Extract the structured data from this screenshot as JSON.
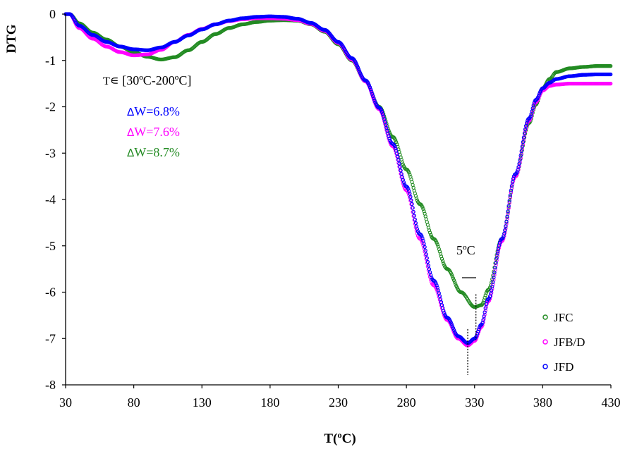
{
  "chart_data": {
    "type": "scatter",
    "xlabel": "T(ºC)",
    "ylabel": "DTG",
    "xlim": [
      30,
      430
    ],
    "ylim": [
      -8,
      0
    ],
    "x_ticks": [
      30,
      80,
      130,
      180,
      230,
      280,
      330,
      380,
      430
    ],
    "y_ticks": [
      0,
      -1,
      -2,
      -3,
      -4,
      -5,
      -6,
      -7,
      -8
    ],
    "grid": false,
    "legend_position": "bottom-right",
    "series": [
      {
        "name": "JFC",
        "color": "#228B22",
        "points": [
          [
            30,
            0
          ],
          [
            33,
            0
          ],
          [
            40,
            -0.2
          ],
          [
            50,
            -0.4
          ],
          [
            60,
            -0.55
          ],
          [
            70,
            -0.7
          ],
          [
            80,
            -0.82
          ],
          [
            90,
            -0.92
          ],
          [
            100,
            -0.98
          ],
          [
            110,
            -0.93
          ],
          [
            120,
            -0.78
          ],
          [
            130,
            -0.6
          ],
          [
            140,
            -0.43
          ],
          [
            150,
            -0.3
          ],
          [
            160,
            -0.22
          ],
          [
            170,
            -0.17
          ],
          [
            180,
            -0.14
          ],
          [
            190,
            -0.13
          ],
          [
            200,
            -0.14
          ],
          [
            210,
            -0.22
          ],
          [
            220,
            -0.38
          ],
          [
            230,
            -0.65
          ],
          [
            240,
            -1.0
          ],
          [
            250,
            -1.45
          ],
          [
            260,
            -2.0
          ],
          [
            270,
            -2.65
          ],
          [
            280,
            -3.35
          ],
          [
            290,
            -4.1
          ],
          [
            300,
            -4.85
          ],
          [
            310,
            -5.5
          ],
          [
            320,
            -6.0
          ],
          [
            330,
            -6.32
          ],
          [
            335,
            -6.28
          ],
          [
            340,
            -5.95
          ],
          [
            350,
            -4.85
          ],
          [
            360,
            -3.5
          ],
          [
            370,
            -2.35
          ],
          [
            375,
            -1.95
          ],
          [
            380,
            -1.6
          ],
          [
            385,
            -1.4
          ],
          [
            390,
            -1.25
          ],
          [
            400,
            -1.17
          ],
          [
            410,
            -1.14
          ],
          [
            420,
            -1.12
          ],
          [
            430,
            -1.12
          ]
        ]
      },
      {
        "name": "JFB/D",
        "color": "#FF00FF",
        "points": [
          [
            30,
            0
          ],
          [
            33,
            0
          ],
          [
            40,
            -0.3
          ],
          [
            50,
            -0.53
          ],
          [
            60,
            -0.7
          ],
          [
            70,
            -0.82
          ],
          [
            80,
            -0.89
          ],
          [
            90,
            -0.87
          ],
          [
            100,
            -0.77
          ],
          [
            110,
            -0.6
          ],
          [
            120,
            -0.45
          ],
          [
            130,
            -0.32
          ],
          [
            140,
            -0.22
          ],
          [
            150,
            -0.15
          ],
          [
            160,
            -0.11
          ],
          [
            170,
            -0.09
          ],
          [
            180,
            -0.09
          ],
          [
            190,
            -0.1
          ],
          [
            200,
            -0.13
          ],
          [
            210,
            -0.21
          ],
          [
            220,
            -0.36
          ],
          [
            230,
            -0.62
          ],
          [
            240,
            -0.98
          ],
          [
            250,
            -1.45
          ],
          [
            260,
            -2.05
          ],
          [
            270,
            -2.85
          ],
          [
            280,
            -3.8
          ],
          [
            290,
            -4.85
          ],
          [
            300,
            -5.85
          ],
          [
            310,
            -6.6
          ],
          [
            318,
            -7.0
          ],
          [
            325,
            -7.15
          ],
          [
            330,
            -7.05
          ],
          [
            335,
            -6.75
          ],
          [
            340,
            -6.2
          ],
          [
            350,
            -4.9
          ],
          [
            360,
            -3.5
          ],
          [
            370,
            -2.3
          ],
          [
            375,
            -1.9
          ],
          [
            380,
            -1.65
          ],
          [
            385,
            -1.55
          ],
          [
            390,
            -1.52
          ],
          [
            400,
            -1.5
          ],
          [
            410,
            -1.5
          ],
          [
            420,
            -1.5
          ],
          [
            430,
            -1.5
          ]
        ]
      },
      {
        "name": "JFD",
        "color": "#0000FF",
        "points": [
          [
            30,
            0
          ],
          [
            33,
            0
          ],
          [
            40,
            -0.25
          ],
          [
            50,
            -0.45
          ],
          [
            60,
            -0.6
          ],
          [
            70,
            -0.7
          ],
          [
            80,
            -0.76
          ],
          [
            90,
            -0.78
          ],
          [
            100,
            -0.72
          ],
          [
            110,
            -0.6
          ],
          [
            120,
            -0.46
          ],
          [
            130,
            -0.33
          ],
          [
            140,
            -0.22
          ],
          [
            150,
            -0.14
          ],
          [
            160,
            -0.09
          ],
          [
            170,
            -0.06
          ],
          [
            180,
            -0.05
          ],
          [
            190,
            -0.06
          ],
          [
            200,
            -0.1
          ],
          [
            210,
            -0.19
          ],
          [
            220,
            -0.34
          ],
          [
            230,
            -0.6
          ],
          [
            240,
            -0.95
          ],
          [
            250,
            -1.43
          ],
          [
            260,
            -2.02
          ],
          [
            270,
            -2.8
          ],
          [
            280,
            -3.72
          ],
          [
            290,
            -4.75
          ],
          [
            300,
            -5.75
          ],
          [
            310,
            -6.55
          ],
          [
            318,
            -6.95
          ],
          [
            325,
            -7.1
          ],
          [
            330,
            -7.0
          ],
          [
            335,
            -6.7
          ],
          [
            340,
            -6.15
          ],
          [
            350,
            -4.85
          ],
          [
            360,
            -3.45
          ],
          [
            370,
            -2.25
          ],
          [
            375,
            -1.85
          ],
          [
            380,
            -1.6
          ],
          [
            385,
            -1.48
          ],
          [
            390,
            -1.4
          ],
          [
            400,
            -1.34
          ],
          [
            410,
            -1.31
          ],
          [
            420,
            -1.3
          ],
          [
            430,
            -1.3
          ]
        ]
      }
    ],
    "annotations": {
      "range_prefix": "T",
      "range_symbol": "∊",
      "range_text": " [30ºC-200ºC]",
      "delta_symbol": "Δ",
      "weight_losses": [
        {
          "text": "W=6.8%",
          "color": "#0000FF"
        },
        {
          "text": "W=7.6%",
          "color": "#FF00FF"
        },
        {
          "text": "W=8.7%",
          "color": "#228B22"
        }
      ],
      "shift_label": "5ºC",
      "peak_markers": [
        {
          "x": 325,
          "y": -7.1
        },
        {
          "x": 331,
          "y": -6.35
        }
      ]
    }
  }
}
